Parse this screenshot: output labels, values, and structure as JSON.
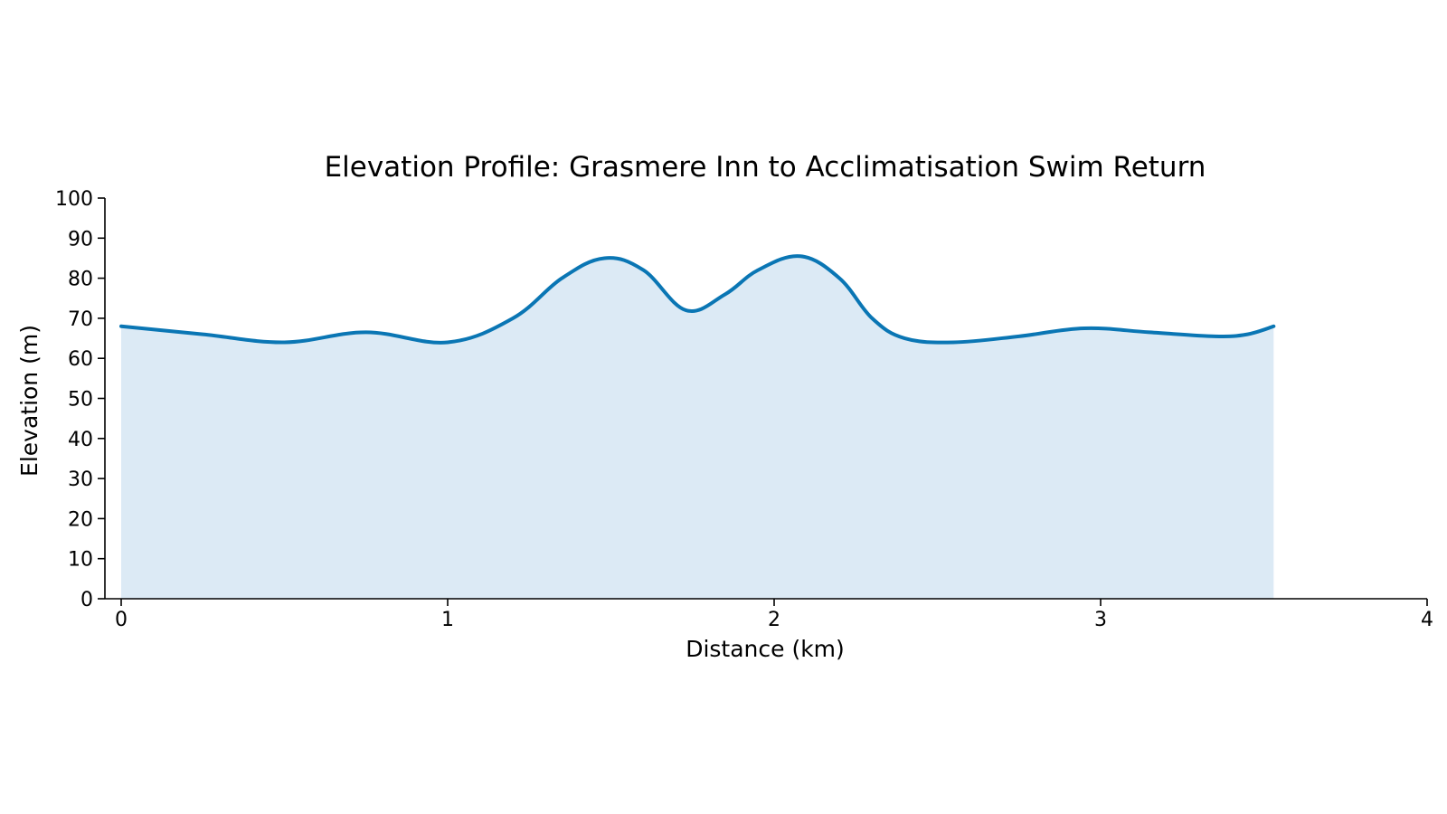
{
  "chart_data": {
    "type": "area",
    "title": "Elevation Profile: Grasmere Inn to Acclimatisation Swim Return",
    "xlabel": "Distance (km)",
    "ylabel": "Elevation (m)",
    "xlim": [
      0,
      4
    ],
    "ylim": [
      0,
      100
    ],
    "xticks": [
      "0",
      "1",
      "2",
      "3",
      "4"
    ],
    "yticks": [
      "0",
      "10",
      "20",
      "30",
      "40",
      "50",
      "60",
      "70",
      "80",
      "90",
      "100"
    ],
    "grid": false,
    "legend": "none",
    "line_color": "#0a76b4",
    "fill_color": "#dceaf5",
    "x": [
      0,
      0.25,
      0.5,
      0.75,
      1.0,
      1.2,
      1.35,
      1.48,
      1.6,
      1.73,
      1.85,
      1.95,
      2.08,
      2.2,
      2.3,
      2.4,
      2.55,
      2.75,
      2.95,
      3.15,
      3.35,
      3.45,
      3.53
    ],
    "y": [
      68,
      66,
      64,
      66.5,
      64,
      70,
      80,
      85,
      82,
      72,
      76,
      82,
      85.5,
      80,
      70,
      65,
      64,
      65.5,
      67.5,
      66.5,
      65.5,
      66,
      68
    ]
  }
}
